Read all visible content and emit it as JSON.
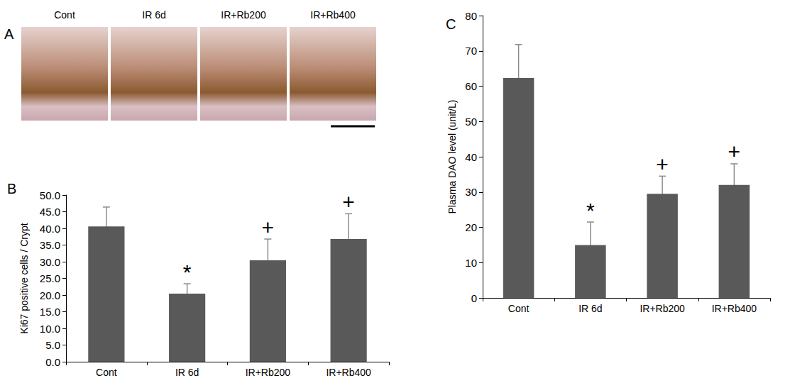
{
  "image_panel": {
    "panel_label": "A",
    "labels": [
      "Cont",
      "IR 6d",
      "IR+Rb200",
      "IR+Rb400"
    ]
  },
  "chart_data": [
    {
      "type": "bar",
      "panel_label": "B",
      "categories": [
        "Cont",
        "IR 6d",
        "IR+Rb200",
        "IR+Rb400"
      ],
      "values": [
        40.6,
        20.4,
        30.4,
        36.8
      ],
      "errors": [
        5.8,
        3.0,
        6.4,
        7.6
      ],
      "annotations": [
        null,
        "*",
        "+",
        "+"
      ],
      "color": "#595959",
      "ylabel": "Ki67 positive cells / Crypt",
      "ylim": [
        0,
        50
      ],
      "yticks": [
        {
          "value": 0,
          "label": "0.0"
        },
        {
          "value": 5,
          "label": "5.0"
        },
        {
          "value": 10,
          "label": "10.0"
        },
        {
          "value": 15,
          "label": "15.0"
        },
        {
          "value": 20,
          "label": "20.0"
        },
        {
          "value": 25,
          "label": "25.0"
        },
        {
          "value": 30,
          "label": "30.0"
        },
        {
          "value": 35,
          "label": "35.0"
        },
        {
          "value": 40,
          "label": "40.0"
        },
        {
          "value": 45,
          "label": "45.0"
        },
        {
          "value": 50,
          "label": "50.0"
        }
      ],
      "grid": false
    },
    {
      "type": "bar",
      "panel_label": "C",
      "categories": [
        "Cont",
        "IR 6d",
        "IR+Rb200",
        "IR+Rb400"
      ],
      "values": [
        62.3,
        15.0,
        29.5,
        32.0
      ],
      "errors": [
        9.5,
        6.5,
        5.0,
        6.0
      ],
      "annotations": [
        null,
        "*",
        "+",
        "+"
      ],
      "color": "#595959",
      "ylabel": "Plasma DAO level (unit/L)",
      "ylim": [
        0,
        80
      ],
      "yticks": [
        0,
        10,
        20,
        30,
        40,
        50,
        60,
        70,
        80
      ],
      "grid": false
    }
  ]
}
